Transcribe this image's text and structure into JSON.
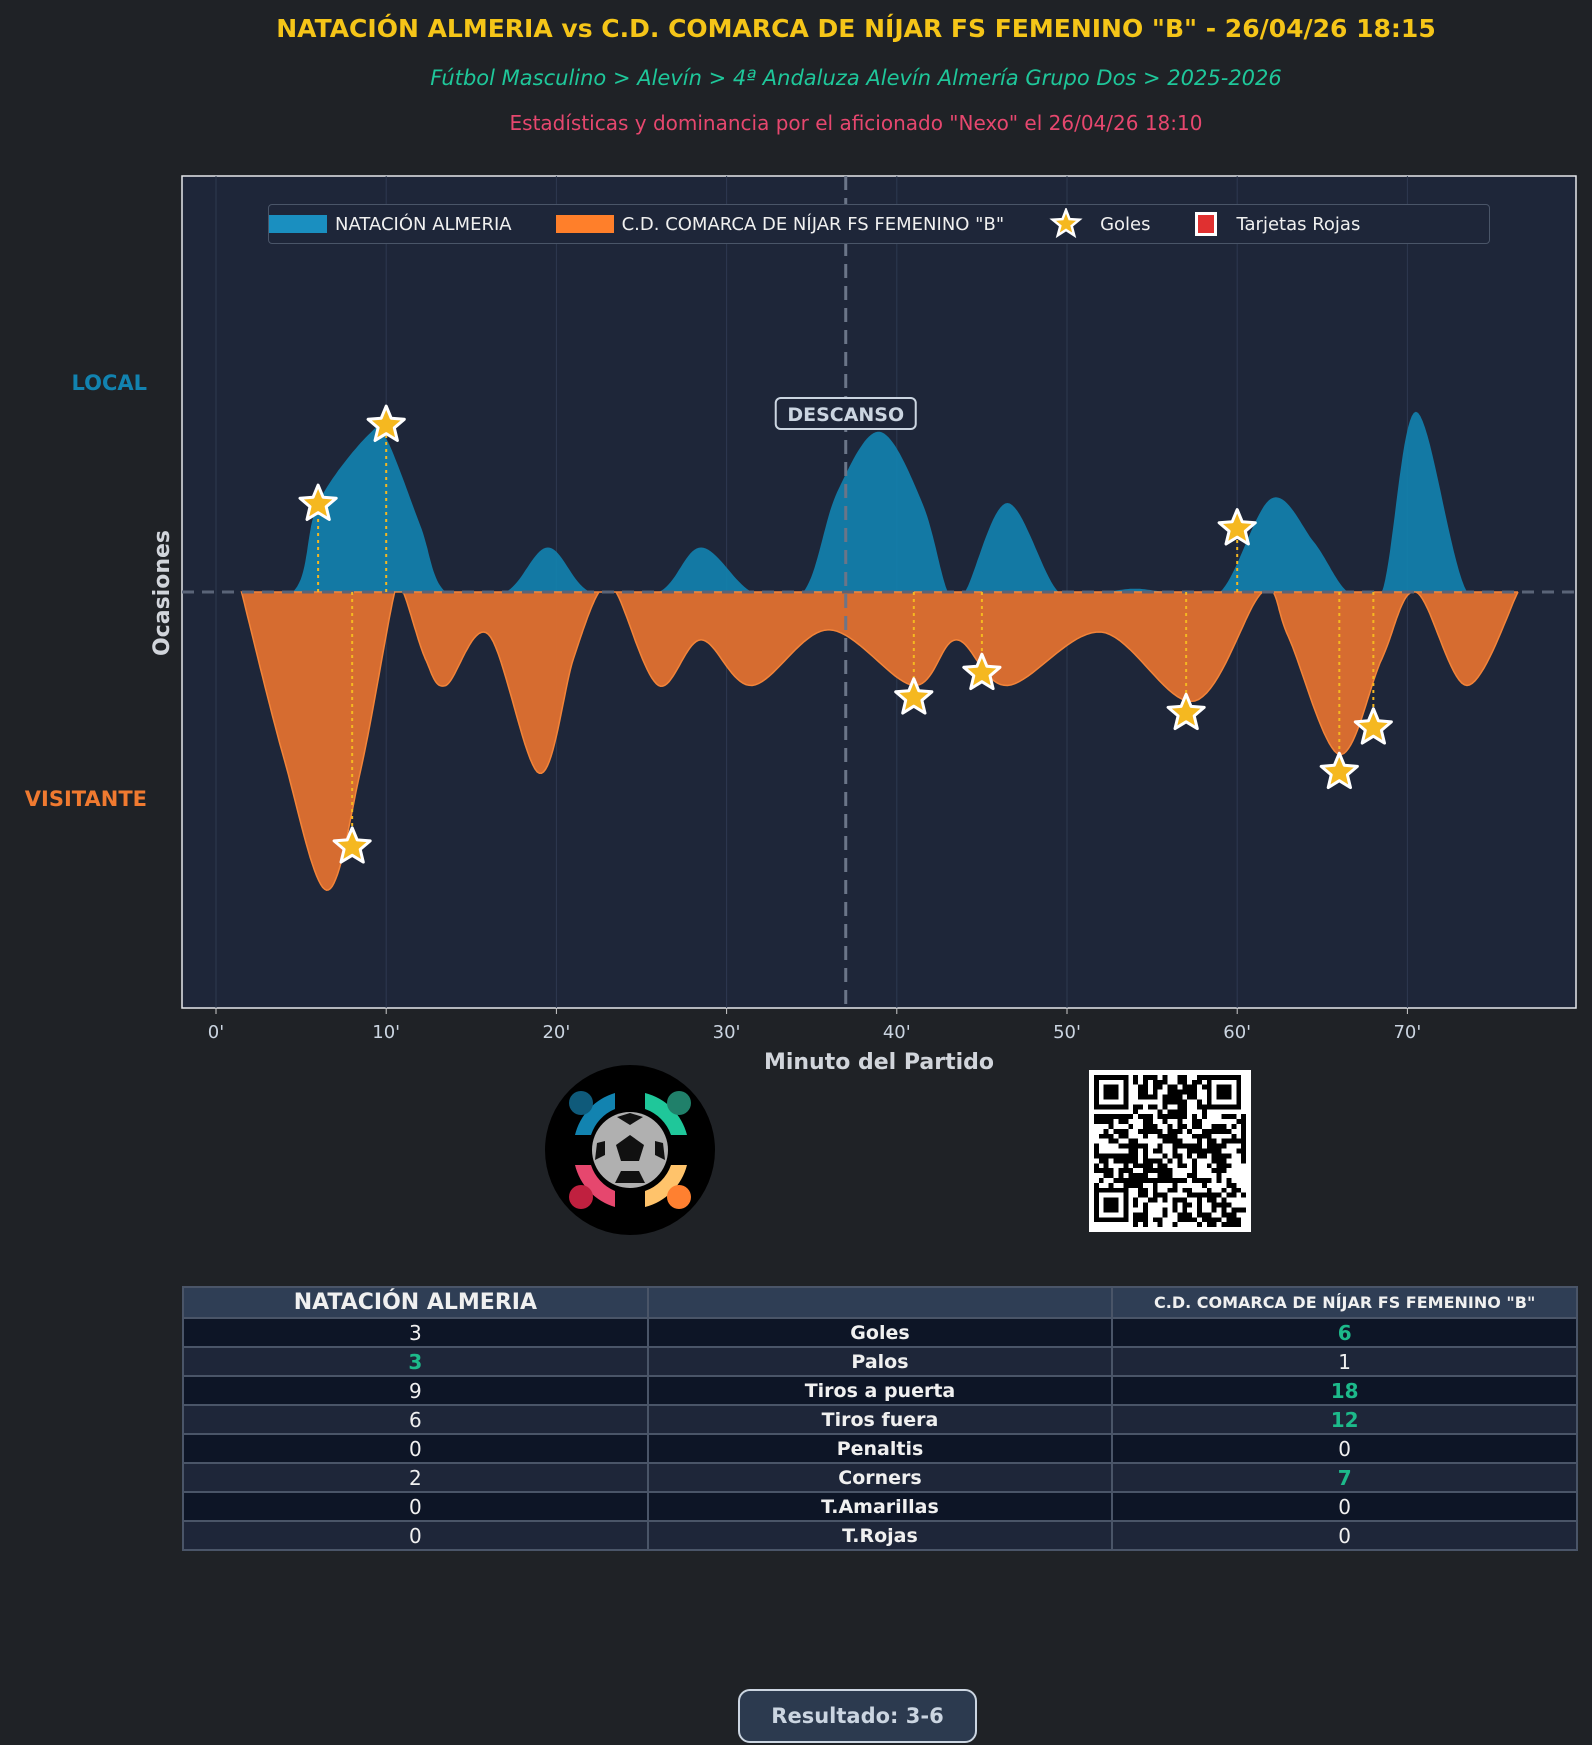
{
  "header": {
    "title": "NATACIÓN ALMERIA vs C.D. COMARCA DE NÍJAR FS FEMENINO \"B\" - 26/04/26 18:15",
    "breadcrumb": "Fútbol Masculino > Alevín > 4ª Andaluza Alevín Almería Grupo Dos > 2025-2026",
    "credit": "Estadísticas y dominancia por el aficionado \"Nexo\" el 26/04/26 18:10"
  },
  "colors": {
    "home": "#1283b0",
    "away": "#e07030",
    "goal": "#f5b820",
    "red_card": "#e03030",
    "highlight": "#1db98a"
  },
  "chart_data": {
    "type": "area",
    "xlabel": "Minuto del Partido",
    "ylabel": "Ocasiones",
    "local_label": "LOCAL",
    "away_label": "VISITANTE",
    "xticks": [
      "0'",
      "10'",
      "20'",
      "30'",
      "40'",
      "50'",
      "60'",
      "70'"
    ],
    "xlim": [
      -2,
      80
    ],
    "ylim": [
      -3.75,
      3.75
    ],
    "halftime": {
      "minute": 37,
      "label": "DESCANSO"
    },
    "legend": {
      "placement": "top",
      "items": [
        "NATACIÓN ALMERIA",
        "C.D. COMARCA DE NÍJAR FS FEMENINO \"B\"",
        "Goles",
        "Tarjetas Rojas"
      ]
    },
    "series": [
      {
        "name": "NATACIÓN ALMERIA",
        "points": [
          [
            0,
            0
          ],
          [
            4.5,
            0
          ],
          [
            6,
            0.8
          ],
          [
            9,
            1.42
          ],
          [
            10,
            1.38
          ],
          [
            12,
            0.6
          ],
          [
            13.5,
            0
          ],
          [
            17,
            0
          ],
          [
            19.5,
            0.4
          ],
          [
            22,
            0
          ],
          [
            26,
            0
          ],
          [
            28.5,
            0.4
          ],
          [
            31.5,
            0
          ],
          [
            34.5,
            0
          ],
          [
            36.5,
            0.9
          ],
          [
            39,
            1.44
          ],
          [
            41.5,
            0.8
          ],
          [
            43,
            0
          ],
          [
            44,
            0
          ],
          [
            46.5,
            0.8
          ],
          [
            49.5,
            0
          ],
          [
            52,
            0
          ],
          [
            54,
            0.03
          ],
          [
            56,
            0
          ],
          [
            59,
            0
          ],
          [
            62,
            0.84
          ],
          [
            64.5,
            0.45
          ],
          [
            66.5,
            0
          ],
          [
            68.5,
            0
          ],
          [
            70.5,
            1.62
          ],
          [
            73.5,
            0
          ],
          [
            76.5,
            0
          ]
        ]
      },
      {
        "name": "C.D. COMARCA DE NÍJAR FS FEMENINO \"B\"",
        "points": [
          [
            1.5,
            0
          ],
          [
            4,
            -1.5
          ],
          [
            6.5,
            -2.68
          ],
          [
            8.5,
            -1.6
          ],
          [
            10.5,
            0
          ],
          [
            11,
            0
          ],
          [
            12.3,
            -0.6
          ],
          [
            13.5,
            -0.84
          ],
          [
            16,
            -0.38
          ],
          [
            19,
            -1.63
          ],
          [
            21,
            -0.6
          ],
          [
            22.5,
            0
          ],
          [
            23.5,
            0
          ],
          [
            26,
            -0.84
          ],
          [
            28.5,
            -0.43
          ],
          [
            31.5,
            -0.84
          ],
          [
            36,
            -0.34
          ],
          [
            41,
            -0.84
          ],
          [
            43.5,
            -0.43
          ],
          [
            46.5,
            -0.84
          ],
          [
            52,
            -0.36
          ],
          [
            57.5,
            -0.98
          ],
          [
            61.5,
            0
          ],
          [
            63,
            -0.4
          ],
          [
            66,
            -1.46
          ],
          [
            68.5,
            -0.6
          ],
          [
            70.5,
            0
          ],
          [
            73.5,
            -0.84
          ],
          [
            76.5,
            0
          ]
        ]
      }
    ],
    "goals": {
      "home": [
        [
          6,
          0.79
        ],
        [
          10,
          1.5
        ],
        [
          60,
          0.57
        ]
      ],
      "away": [
        [
          8,
          -2.29
        ],
        [
          41,
          -0.95
        ],
        [
          45,
          -0.73
        ],
        [
          57,
          -1.09
        ],
        [
          66,
          -1.62
        ],
        [
          68,
          -1.22
        ]
      ]
    },
    "red_cards": []
  },
  "stats": {
    "home_team": "NATACIÓN ALMERIA",
    "away_team": "C.D. COMARCA DE NÍJAR FS FEMENINO \"B\"",
    "rows": [
      {
        "label": "Goles",
        "home": "3",
        "away": "6",
        "better": "away"
      },
      {
        "label": "Palos",
        "home": "3",
        "away": "1",
        "better": "home"
      },
      {
        "label": "Tiros a puerta",
        "home": "9",
        "away": "18",
        "better": "away"
      },
      {
        "label": "Tiros fuera",
        "home": "6",
        "away": "12",
        "better": "away"
      },
      {
        "label": "Penaltis",
        "home": "0",
        "away": "0",
        "better": ""
      },
      {
        "label": "Corners",
        "home": "2",
        "away": "7",
        "better": "away"
      },
      {
        "label": "T.Amarillas",
        "home": "0",
        "away": "0",
        "better": ""
      },
      {
        "label": "T.Rojas",
        "home": "0",
        "away": "0",
        "better": ""
      }
    ]
  },
  "result": "Resultado: 3-6"
}
